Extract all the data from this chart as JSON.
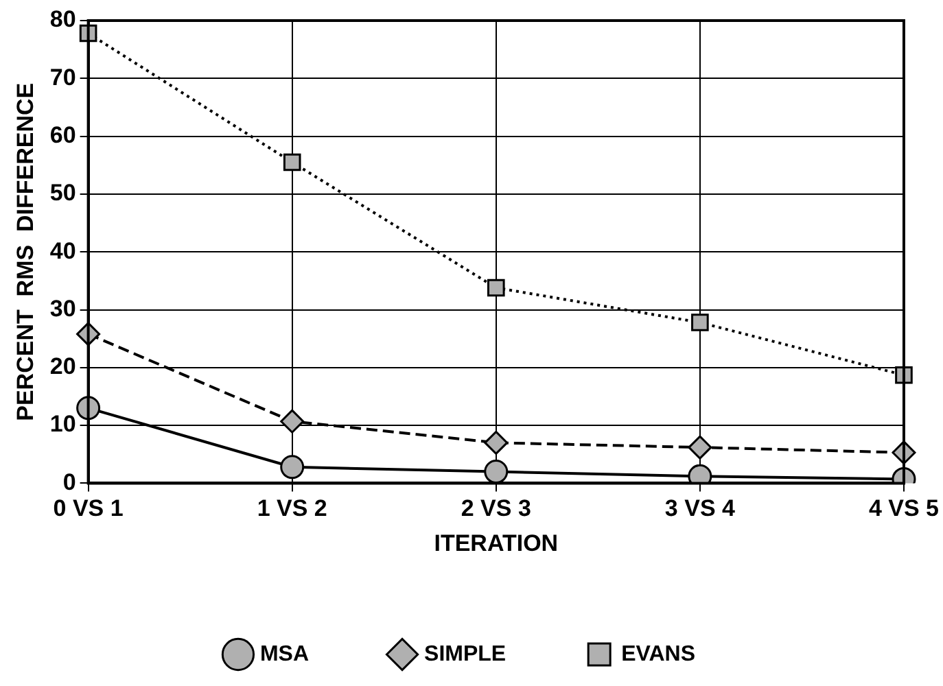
{
  "chart_data": {
    "type": "line",
    "xlabel": "ITERATION",
    "ylabel": "PERCENT  RMS  DIFFERENCE",
    "categories": [
      "0 VS 1",
      "1 VS 2",
      "2 VS 3",
      "3 VS 4",
      "4 VS 5"
    ],
    "series": [
      {
        "name": "MSA",
        "color": "#000000",
        "marker": "circle",
        "line_style": "solid",
        "values": [
          13,
          2.8,
          2,
          1.2,
          0.7
        ]
      },
      {
        "name": "SIMPLE",
        "color": "#000000",
        "marker": "diamond",
        "line_style": "dashed",
        "values": [
          25.8,
          10.7,
          7,
          6.2,
          5.3
        ]
      },
      {
        "name": "EVANS",
        "color": "#000000",
        "marker": "square",
        "line_style": "dotted",
        "values": [
          77.8,
          55.5,
          33.8,
          27.8,
          18.7
        ]
      }
    ],
    "ylim": [
      0,
      80
    ],
    "yticks": [
      0,
      10,
      20,
      30,
      40,
      50,
      60,
      70,
      80
    ],
    "grid": true,
    "legend": "bottom"
  }
}
